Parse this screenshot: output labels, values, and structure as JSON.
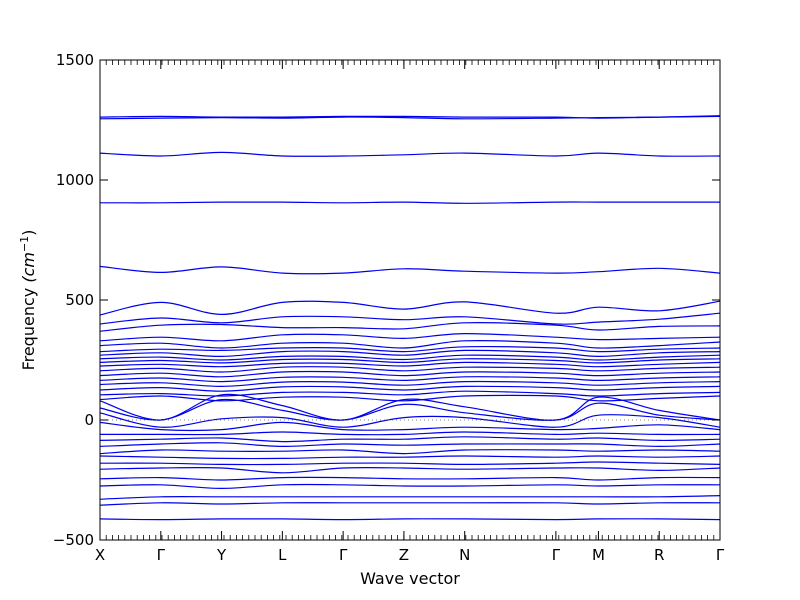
{
  "chart_data": {
    "type": "line",
    "xlabel": "Wave vector",
    "ylabel_text": "Frequency ",
    "ylabel_unit": "(cm",
    "ylabel_exp": "−1",
    "ylabel_close": ")",
    "ylim": [
      -500,
      1500
    ],
    "yticks": [
      -500,
      0,
      500,
      1000,
      1500
    ],
    "ytick_labels": [
      "−500",
      "0",
      "500",
      "1000",
      "1500"
    ],
    "xticks": [
      {
        "label": "X",
        "pos": 0
      },
      {
        "label": "Γ",
        "pos": 1
      },
      {
        "label": "Y",
        "pos": 2
      },
      {
        "label": "L",
        "pos": 3
      },
      {
        "label": "Γ",
        "pos": 4
      },
      {
        "label": "Z",
        "pos": 5
      },
      {
        "label": "N",
        "pos": 6
      },
      {
        "label": "Γ",
        "pos": 7.5
      },
      {
        "label": "M",
        "pos": 8.2
      },
      {
        "label": "R",
        "pos": 9.2
      },
      {
        "label": "Γ",
        "pos": 10.2
      }
    ],
    "xlim": [
      0,
      10.2
    ],
    "zero_line": true,
    "series_color": "#0000ee",
    "bands": [
      {
        "values": [
          1255,
          1258,
          1260,
          1258,
          1262,
          1260,
          1255,
          1258,
          1260,
          1262,
          1265
        ]
      },
      {
        "values": [
          1262,
          1265,
          1262,
          1262,
          1265,
          1265,
          1262,
          1262,
          1258,
          1262,
          1268
        ]
      },
      {
        "values": [
          1112,
          1100,
          1115,
          1100,
          1100,
          1105,
          1112,
          1100,
          1112,
          1100,
          1100
        ]
      },
      {
        "values": [
          905,
          905,
          908,
          908,
          905,
          908,
          903,
          908,
          908,
          908,
          908
        ]
      },
      {
        "values": [
          640,
          615,
          638,
          612,
          612,
          630,
          620,
          612,
          618,
          632,
          612
        ]
      },
      {
        "values": [
          438,
          490,
          440,
          490,
          490,
          462,
          492,
          445,
          470,
          455,
          495
        ]
      },
      {
        "values": [
          400,
          425,
          405,
          430,
          430,
          418,
          430,
          400,
          408,
          420,
          445
        ]
      },
      {
        "values": [
          370,
          395,
          398,
          385,
          385,
          380,
          405,
          395,
          375,
          390,
          392
        ]
      },
      {
        "values": [
          330,
          345,
          330,
          355,
          355,
          340,
          360,
          345,
          335,
          340,
          345
        ]
      },
      {
        "values": [
          310,
          320,
          300,
          320,
          320,
          300,
          330,
          320,
          300,
          310,
          325
        ]
      },
      {
        "values": [
          285,
          295,
          290,
          300,
          300,
          285,
          305,
          300,
          285,
          295,
          300
        ]
      },
      {
        "values": [
          270,
          280,
          265,
          285,
          285,
          270,
          290,
          280,
          265,
          280,
          285
        ]
      },
      {
        "values": [
          255,
          262,
          250,
          265,
          265,
          252,
          270,
          262,
          250,
          262,
          270
        ]
      },
      {
        "values": [
          240,
          248,
          238,
          252,
          252,
          240,
          255,
          248,
          238,
          250,
          255
        ]
      },
      {
        "values": [
          225,
          232,
          222,
          236,
          236,
          225,
          240,
          232,
          222,
          232,
          240
        ]
      },
      {
        "values": [
          205,
          215,
          200,
          220,
          220,
          205,
          220,
          215,
          205,
          215,
          220
        ]
      },
      {
        "values": [
          185,
          195,
          180,
          200,
          200,
          185,
          200,
          195,
          185,
          195,
          200
        ]
      },
      {
        "values": [
          165,
          175,
          160,
          178,
          178,
          165,
          180,
          175,
          165,
          175,
          180
        ]
      },
      {
        "values": [
          148,
          155,
          140,
          158,
          158,
          145,
          160,
          155,
          145,
          155,
          160
        ]
      },
      {
        "values": [
          125,
          135,
          120,
          138,
          138,
          125,
          140,
          135,
          125,
          135,
          140
        ]
      },
      {
        "values": [
          105,
          110,
          100,
          115,
          115,
          105,
          120,
          110,
          100,
          110,
          115
        ]
      },
      {
        "values": [
          85,
          100,
          80,
          95,
          95,
          80,
          100,
          100,
          80,
          90,
          100
        ]
      },
      {
        "values": [
          80,
          0,
          105,
          60,
          0,
          85,
          55,
          0,
          95,
          40,
          0
        ]
      },
      {
        "values": [
          50,
          0,
          85,
          40,
          0,
          65,
          30,
          0,
          70,
          20,
          0
        ]
      },
      {
        "values": [
          30,
          -30,
          5,
          10,
          -30,
          10,
          10,
          -30,
          20,
          10,
          -30
        ]
      },
      {
        "values": [
          -10,
          -40,
          -40,
          -10,
          -40,
          -40,
          -30,
          -40,
          -35,
          -20,
          -40
        ]
      },
      {
        "values": [
          -60,
          -60,
          -60,
          -50,
          -60,
          -60,
          -50,
          -60,
          -55,
          -60,
          -60
        ]
      },
      {
        "values": [
          -85,
          -80,
          -75,
          -90,
          -80,
          -80,
          -70,
          -80,
          -75,
          -85,
          -80
        ]
      },
      {
        "values": [
          -110,
          -100,
          -95,
          -110,
          -100,
          -105,
          -100,
          -100,
          -100,
          -110,
          -100
        ]
      },
      {
        "values": [
          -140,
          -125,
          -130,
          -130,
          -125,
          -140,
          -125,
          -125,
          -130,
          -125,
          -130
        ]
      },
      {
        "values": [
          -150,
          -155,
          -160,
          -160,
          -155,
          -155,
          -150,
          -155,
          -150,
          -155,
          -150
        ]
      },
      {
        "values": [
          -180,
          -180,
          -185,
          -185,
          -180,
          -180,
          -185,
          -180,
          -175,
          -180,
          -185
        ]
      },
      {
        "values": [
          -205,
          -200,
          -200,
          -220,
          -200,
          -200,
          -205,
          -200,
          -200,
          -210,
          -200
        ]
      },
      {
        "values": [
          -245,
          -240,
          -250,
          -240,
          -240,
          -245,
          -245,
          -240,
          -250,
          -240,
          -240
        ]
      },
      {
        "values": [
          -275,
          -270,
          -285,
          -270,
          -270,
          -275,
          -275,
          -270,
          -275,
          -270,
          -270
        ]
      },
      {
        "values": [
          -330,
          -320,
          -320,
          -320,
          -320,
          -320,
          -320,
          -320,
          -320,
          -320,
          -315
        ]
      },
      {
        "values": [
          -355,
          -345,
          -350,
          -345,
          -345,
          -345,
          -345,
          -345,
          -350,
          -345,
          -345
        ]
      },
      {
        "values": [
          -412,
          -415,
          -412,
          -412,
          -415,
          -412,
          -412,
          -415,
          -412,
          -412,
          -415
        ]
      }
    ]
  }
}
